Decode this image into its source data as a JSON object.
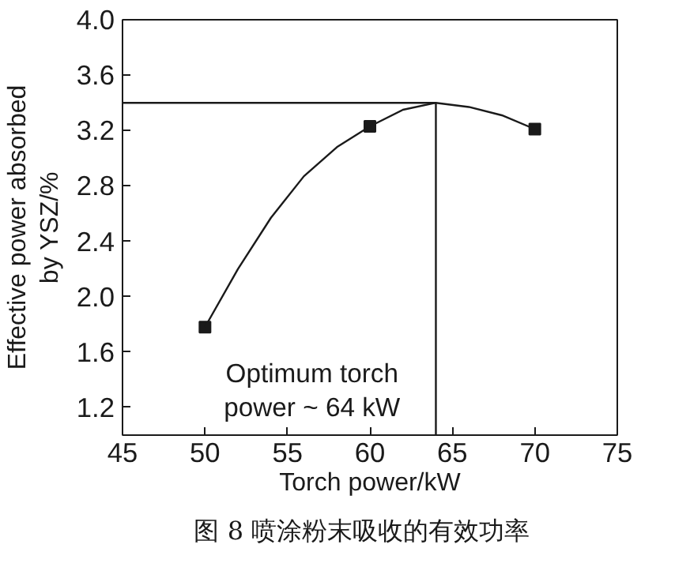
{
  "chart_data": {
    "type": "scatter",
    "xlabel": "Torch power/kW",
    "ylabel": "Effective power absorbed\nby YSZ/%",
    "annotations": [
      "Optimum torch\npower ~ 64 kW",
      "图 8   喷涂粉末吸收的有效功率"
    ],
    "xlim": [
      45,
      75
    ],
    "xticks": [
      45,
      50,
      55,
      60,
      65,
      70,
      75
    ],
    "ylim": [
      1.0,
      4.0
    ],
    "yticks": [
      {
        "value": 1.2,
        "label": "1.2"
      },
      {
        "value": 1.6,
        "label": "1.6"
      },
      {
        "value": 2,
        "label": "2.0"
      },
      {
        "value": 2.4,
        "label": "2.4"
      },
      {
        "value": 2.8,
        "label": "2.8"
      },
      {
        "value": 3.2,
        "label": "3.2"
      },
      {
        "value": 3.6,
        "label": "3.6"
      },
      {
        "value": 4,
        "label": "4.0"
      }
    ],
    "grid": false,
    "series": [
      {
        "marker": "square",
        "color": "#1a1a1a",
        "x": [
          50,
          60,
          70
        ],
        "values": [
          1.78,
          3.23,
          3.21
        ]
      },
      {
        "type": "line",
        "line_style": "solid",
        "color": "#1a1a1a",
        "x": [
          50,
          52,
          54,
          56,
          58,
          60,
          62,
          64,
          66,
          68,
          70
        ],
        "values": [
          1.78,
          2.2,
          2.57,
          2.87,
          3.08,
          3.23,
          3.35,
          3.4,
          3.37,
          3.31,
          3.21
        ]
      }
    ],
    "ref_lines": [
      {
        "axis": "y",
        "value": 3.4,
        "color": "#1a1a1a"
      },
      {
        "axis": "x",
        "value": 64,
        "color": "#1a1a1a"
      }
    ]
  }
}
